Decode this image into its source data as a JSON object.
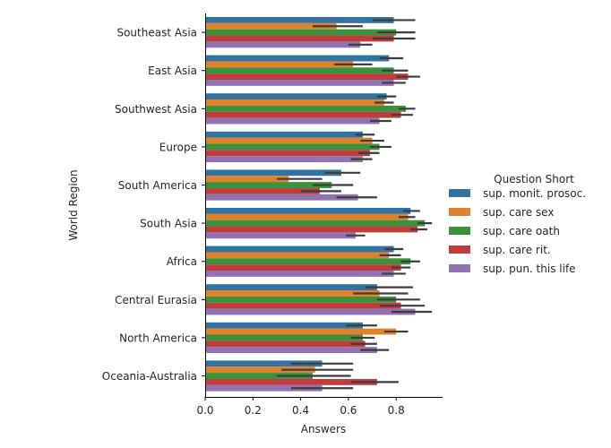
{
  "chart_data": {
    "type": "bar",
    "orientation": "horizontal",
    "xlabel": "Answers",
    "ylabel": "World Region",
    "xlim": [
      0,
      0.99
    ],
    "xticks": [
      "0.0",
      "0.2",
      "0.4",
      "0.6",
      "0.8"
    ],
    "grid": false,
    "legend": {
      "title": "Question Short",
      "placement": "right"
    },
    "categories": [
      "Southeast Asia",
      "East Asia",
      "Southwest Asia",
      "Europe",
      "South America",
      "South Asia",
      "Africa",
      "Central Eurasia",
      "North America",
      "Oceania-Australia"
    ],
    "series": [
      {
        "name": "sup. monit. prosoc.",
        "color": "#3274a1",
        "values": [
          0.79,
          0.77,
          0.76,
          0.66,
          0.57,
          0.86,
          0.79,
          0.72,
          0.66,
          0.49
        ],
        "err_low": [
          0.7,
          0.73,
          0.72,
          0.63,
          0.5,
          0.83,
          0.75,
          0.67,
          0.59,
          0.36
        ],
        "err_high": [
          0.88,
          0.83,
          0.8,
          0.71,
          0.65,
          0.9,
          0.83,
          0.87,
          0.72,
          0.62
        ]
      },
      {
        "name": "sup. care sex",
        "color": "#e1812c",
        "values": [
          0.55,
          0.62,
          0.75,
          0.7,
          0.35,
          0.85,
          0.77,
          0.73,
          0.8,
          0.46
        ],
        "err_low": [
          0.45,
          0.54,
          0.71,
          0.65,
          0.3,
          0.81,
          0.73,
          0.62,
          0.75,
          0.32
        ],
        "err_high": [
          0.66,
          0.7,
          0.79,
          0.75,
          0.49,
          0.88,
          0.82,
          0.85,
          0.85,
          0.62
        ]
      },
      {
        "name": "sup. care oath",
        "color": "#3a923a",
        "values": [
          0.8,
          0.79,
          0.84,
          0.73,
          0.53,
          0.92,
          0.86,
          0.8,
          0.66,
          0.45
        ],
        "err_low": [
          0.72,
          0.74,
          0.81,
          0.69,
          0.45,
          0.89,
          0.82,
          0.72,
          0.61,
          0.3
        ],
        "err_high": [
          0.88,
          0.85,
          0.88,
          0.78,
          0.62,
          0.95,
          0.9,
          0.9,
          0.71,
          0.61
        ]
      },
      {
        "name": "sup. care rit.",
        "color": "#c03d3e",
        "values": [
          0.79,
          0.85,
          0.82,
          0.69,
          0.48,
          0.89,
          0.82,
          0.82,
          0.67,
          0.72
        ],
        "err_low": [
          0.7,
          0.8,
          0.78,
          0.64,
          0.4,
          0.86,
          0.78,
          0.73,
          0.61,
          0.61
        ],
        "err_high": [
          0.88,
          0.9,
          0.87,
          0.73,
          0.57,
          0.93,
          0.86,
          0.92,
          0.72,
          0.81
        ]
      },
      {
        "name": "sup. pun. this life",
        "color": "#9372b2",
        "values": [
          0.65,
          0.79,
          0.73,
          0.66,
          0.64,
          0.63,
          0.79,
          0.88,
          0.72,
          0.49
        ],
        "err_low": [
          0.6,
          0.74,
          0.69,
          0.61,
          0.55,
          0.59,
          0.74,
          0.78,
          0.65,
          0.36
        ],
        "err_high": [
          0.7,
          0.84,
          0.78,
          0.7,
          0.72,
          0.67,
          0.84,
          0.95,
          0.77,
          0.62
        ]
      }
    ]
  }
}
